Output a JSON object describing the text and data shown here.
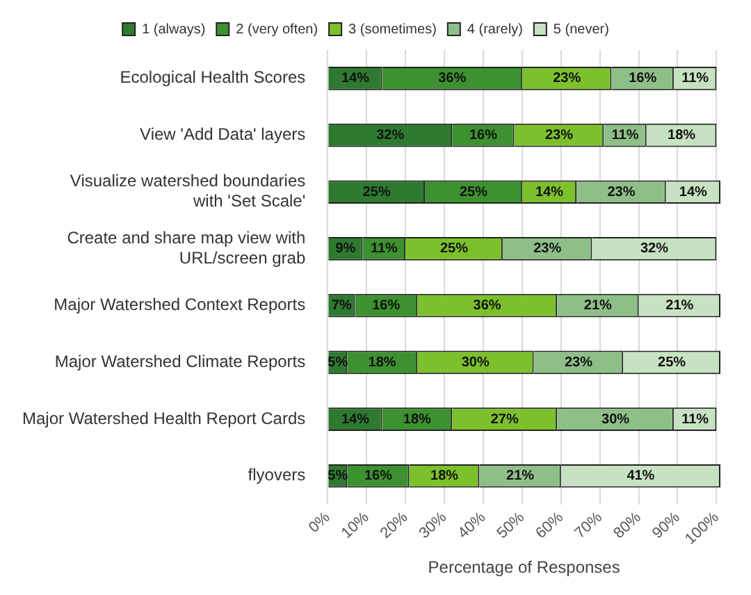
{
  "chart_data": {
    "type": "bar",
    "orientation": "horizontal",
    "stacked": true,
    "xlabel": "Percentage of Responses",
    "categories": [
      "Ecological Health Scores",
      "View 'Add Data' layers",
      "Visualize watershed boundaries with 'Set Scale'",
      "Create and share map view with URL/screen grab",
      "Major Watershed Context Reports",
      "Major Watershed Climate Reports",
      "Major Watershed Health Report Cards",
      "flyovers"
    ],
    "series": [
      {
        "name": "1 (always)",
        "color": "#2e7a30",
        "values": [
          14,
          32,
          25,
          9,
          7,
          5,
          14,
          5
        ],
        "value_labels": [
          "14%",
          "32%",
          "25%",
          "9%",
          "7%",
          "5%",
          "14%",
          "5%"
        ]
      },
      {
        "name": "2 (very often)",
        "color": "#3d9130",
        "values": [
          36,
          16,
          25,
          11,
          16,
          18,
          18,
          16
        ],
        "value_labels": [
          "36%",
          "16%",
          "25%",
          "11%",
          "16%",
          "18%",
          "18%",
          "16%"
        ]
      },
      {
        "name": "3 (sometimes)",
        "color": "#7cc02c",
        "values": [
          23,
          23,
          14,
          25,
          36,
          30,
          27,
          18
        ],
        "value_labels": [
          "23%",
          "23%",
          "14%",
          "25%",
          "36%",
          "30%",
          "27%",
          "18%"
        ]
      },
      {
        "name": "4 (rarely)",
        "color": "#8fbf88",
        "values": [
          16,
          11,
          23,
          23,
          21,
          23,
          30,
          21
        ],
        "value_labels": [
          "16%",
          "11%",
          "23%",
          "23%",
          "21%",
          "23%",
          "30%",
          "21%"
        ]
      },
      {
        "name": "5 (never)",
        "color": "#c7e2c2",
        "values": [
          11,
          18,
          14,
          32,
          21,
          25,
          11,
          41
        ],
        "value_labels": [
          "11%",
          "18%",
          "14%",
          "32%",
          "21%",
          "25%",
          "11%",
          "41%"
        ]
      }
    ],
    "xlim": [
      0,
      101
    ],
    "xticks": [
      {
        "value": 0,
        "label": "0%"
      },
      {
        "value": 10,
        "label": "10%"
      },
      {
        "value": 20,
        "label": "20%"
      },
      {
        "value": 30,
        "label": "30%"
      },
      {
        "value": 40,
        "label": "40%"
      },
      {
        "value": 50,
        "label": "50%"
      },
      {
        "value": 60,
        "label": "60%"
      },
      {
        "value": 70,
        "label": "70%"
      },
      {
        "value": 80,
        "label": "80%"
      },
      {
        "value": 90,
        "label": "90%"
      },
      {
        "value": 100,
        "label": "100%"
      }
    ],
    "grid": "x",
    "legend": "top"
  }
}
